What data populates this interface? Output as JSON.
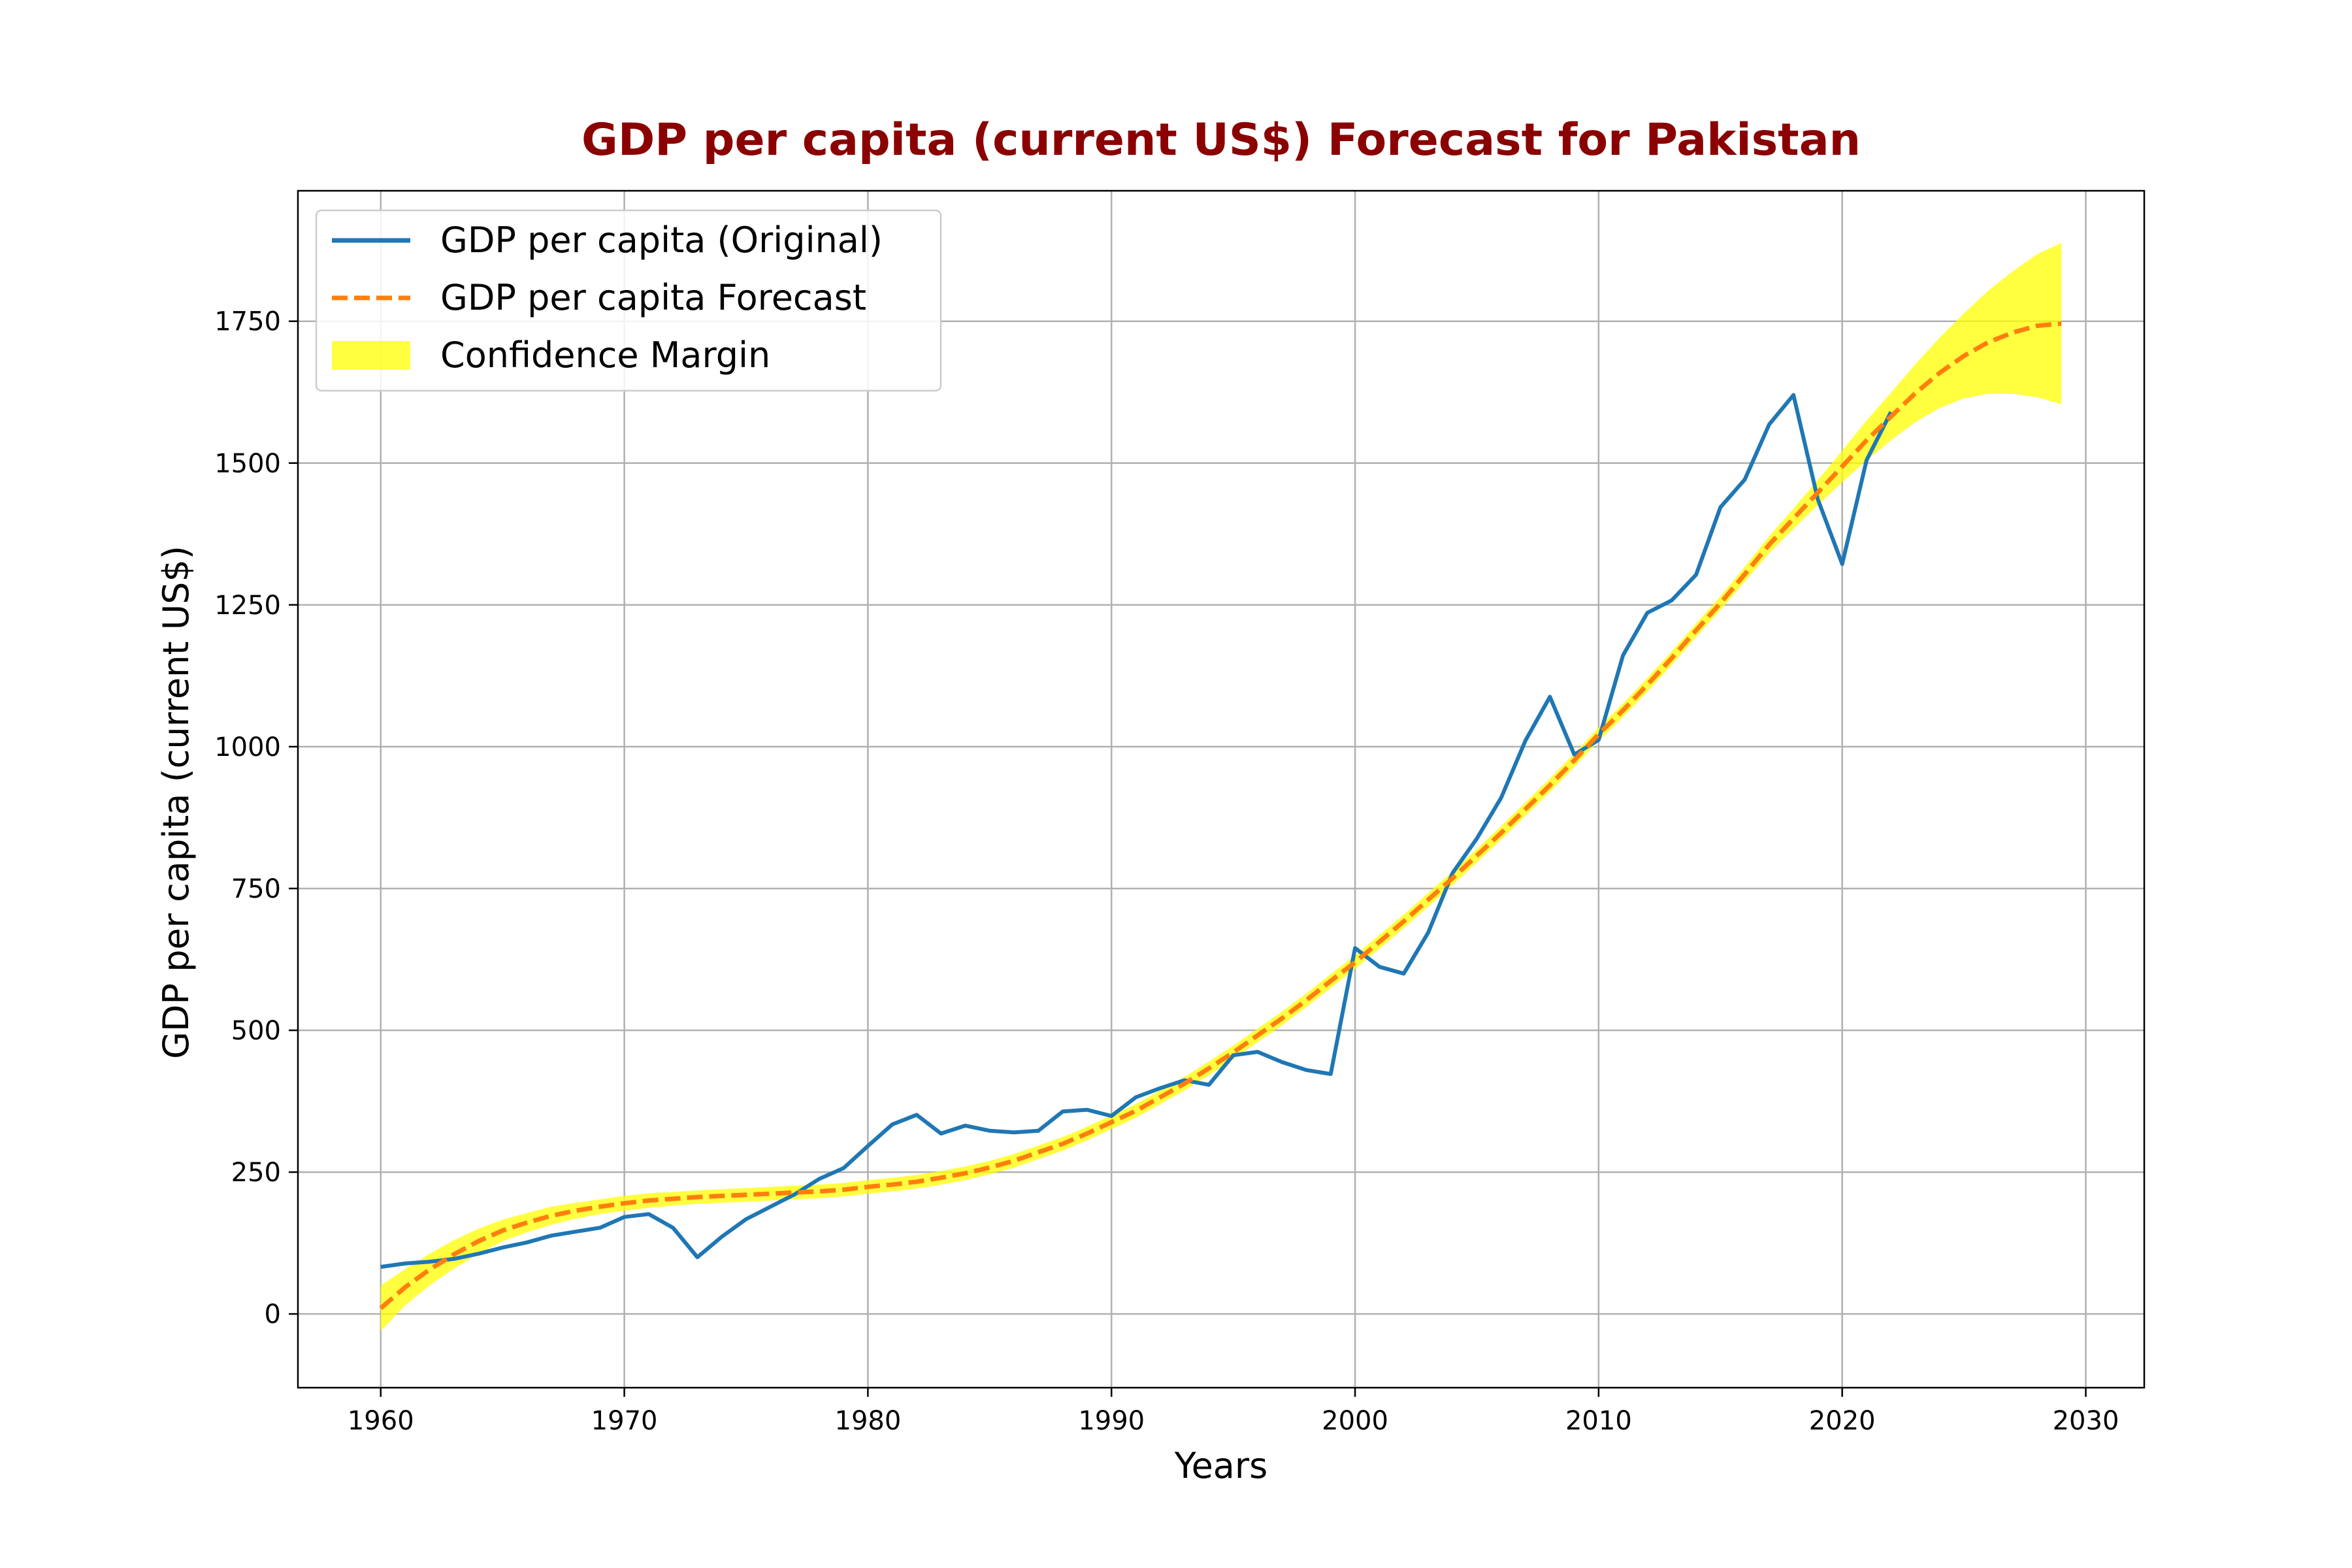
{
  "chart_data": {
    "type": "line",
    "title": "GDP per capita (current US$) Forecast for Pakistan",
    "xlabel": "Years",
    "ylabel": "GDP per capita (current US$)",
    "xlim": [
      1956.6,
      2032.4
    ],
    "ylim": [
      -130,
      1980
    ],
    "xticks": [
      1960,
      1970,
      1980,
      1990,
      2000,
      2010,
      2020,
      2030
    ],
    "yticks": [
      0,
      250,
      500,
      750,
      1000,
      1250,
      1500,
      1750
    ],
    "grid": true,
    "legend_position": "top-left",
    "colors": {
      "title": "#8b0000",
      "original": "#1f77b4",
      "forecast": "#ff7f0e",
      "band": "#ffff00",
      "grid": "#b0b0b0"
    },
    "legend": [
      {
        "label": "GDP per capita (Original)",
        "kind": "line"
      },
      {
        "label": "GDP per capita Forecast",
        "kind": "dashed"
      },
      {
        "label": "Confidence Margin",
        "kind": "band"
      }
    ],
    "series": [
      {
        "name": "GDP per capita (Original)",
        "style": "solid",
        "x": [
          1960,
          1961,
          1962,
          1963,
          1964,
          1965,
          1966,
          1967,
          1968,
          1969,
          1970,
          1971,
          1972,
          1973,
          1974,
          1975,
          1976,
          1977,
          1978,
          1979,
          1980,
          1981,
          1982,
          1983,
          1984,
          1985,
          1986,
          1987,
          1988,
          1989,
          1990,
          1991,
          1992,
          1993,
          1994,
          1995,
          1996,
          1997,
          1998,
          1999,
          2000,
          2001,
          2002,
          2003,
          2004,
          2005,
          2006,
          2007,
          2008,
          2009,
          2010,
          2011,
          2012,
          2013,
          2014,
          2015,
          2016,
          2017,
          2018,
          2019,
          2020,
          2021,
          2022
        ],
        "y": [
          83,
          89,
          92,
          97,
          106,
          117,
          126,
          138,
          145,
          152,
          171,
          176,
          152,
          100,
          136,
          167,
          189,
          211,
          238,
          257,
          296,
          334,
          351,
          318,
          332,
          323,
          320,
          323,
          357,
          360,
          349,
          382,
          398,
          412,
          404,
          456,
          462,
          444,
          430,
          423,
          645,
          612,
          600,
          672,
          777,
          838,
          910,
          1011,
          1088,
          986,
          1012,
          1161,
          1236,
          1258,
          1303,
          1422,
          1471,
          1568,
          1620,
          1436,
          1322,
          1505,
          1590
        ]
      },
      {
        "name": "GDP per capita Forecast",
        "style": "dashed",
        "x": [
          1960,
          1961,
          1962,
          1963,
          1964,
          1965,
          1966,
          1967,
          1968,
          1969,
          1970,
          1971,
          1972,
          1973,
          1974,
          1975,
          1976,
          1977,
          1978,
          1979,
          1980,
          1981,
          1982,
          1983,
          1984,
          1985,
          1986,
          1987,
          1988,
          1989,
          1990,
          1991,
          1992,
          1993,
          1994,
          1995,
          1996,
          1997,
          1998,
          1999,
          2000,
          2001,
          2002,
          2003,
          2004,
          2005,
          2006,
          2007,
          2008,
          2009,
          2010,
          2011,
          2012,
          2013,
          2014,
          2015,
          2016,
          2017,
          2018,
          2019,
          2020,
          2021,
          2022,
          2023,
          2024,
          2025,
          2026,
          2027,
          2028,
          2029
        ],
        "y": [
          10,
          47,
          78,
          105,
          128,
          147,
          161,
          173,
          182,
          189,
          195,
          200,
          203,
          206,
          208,
          210,
          212,
          214,
          216,
          219,
          224,
          228,
          233,
          240,
          248,
          258,
          270,
          285,
          300,
          318,
          338,
          358,
          382,
          406,
          433,
          461,
          491,
          521,
          553,
          587,
          620,
          656,
          692,
          730,
          768,
          808,
          848,
          890,
          932,
          976,
          1022,
          1064,
          1109,
          1156,
          1205,
          1253,
          1304,
          1356,
          1402,
          1448,
          1494,
          1540,
          1582,
          1623,
          1659,
          1689,
          1713,
          1730,
          1742,
          1746
        ]
      }
    ],
    "confidence_band": {
      "name": "Confidence Margin",
      "x": [
        1960,
        1961,
        1962,
        1963,
        1964,
        1965,
        1966,
        1967,
        1968,
        1969,
        1970,
        1971,
        1972,
        1973,
        1974,
        1975,
        1976,
        1977,
        1978,
        1979,
        1980,
        1981,
        1982,
        1983,
        1984,
        1985,
        1986,
        1987,
        1988,
        1989,
        1990,
        1991,
        1992,
        1993,
        1994,
        1995,
        1996,
        1997,
        1998,
        1999,
        2000,
        2001,
        2002,
        2003,
        2004,
        2005,
        2006,
        2007,
        2008,
        2009,
        2010,
        2011,
        2012,
        2013,
        2014,
        2015,
        2016,
        2017,
        2018,
        2019,
        2020,
        2021,
        2022,
        2023,
        2024,
        2025,
        2026,
        2027,
        2028,
        2029
      ],
      "lower": [
        -30,
        15,
        50,
        80,
        106,
        128,
        144,
        157,
        168,
        176,
        182,
        187,
        191,
        194,
        196,
        198,
        200,
        202,
        204,
        207,
        212,
        216,
        221,
        228,
        236,
        246,
        258,
        273,
        288,
        306,
        326,
        346,
        370,
        394,
        421,
        449,
        479,
        509,
        541,
        575,
        608,
        644,
        680,
        718,
        756,
        796,
        836,
        878,
        920,
        964,
        1010,
        1052,
        1097,
        1144,
        1193,
        1241,
        1291,
        1341,
        1384,
        1426,
        1466,
        1505,
        1540,
        1572,
        1597,
        1614,
        1622,
        1622,
        1616,
        1604
      ],
      "upper": [
        50,
        79,
        106,
        130,
        150,
        166,
        178,
        189,
        196,
        202,
        208,
        213,
        215,
        218,
        220,
        222,
        224,
        226,
        228,
        231,
        236,
        240,
        245,
        252,
        260,
        270,
        282,
        297,
        312,
        330,
        350,
        370,
        394,
        418,
        445,
        473,
        503,
        533,
        565,
        599,
        632,
        668,
        704,
        742,
        780,
        820,
        860,
        902,
        944,
        988,
        1034,
        1076,
        1121,
        1168,
        1217,
        1265,
        1317,
        1371,
        1420,
        1470,
        1522,
        1575,
        1624,
        1674,
        1721,
        1764,
        1804,
        1838,
        1868,
        1888
      ]
    }
  }
}
